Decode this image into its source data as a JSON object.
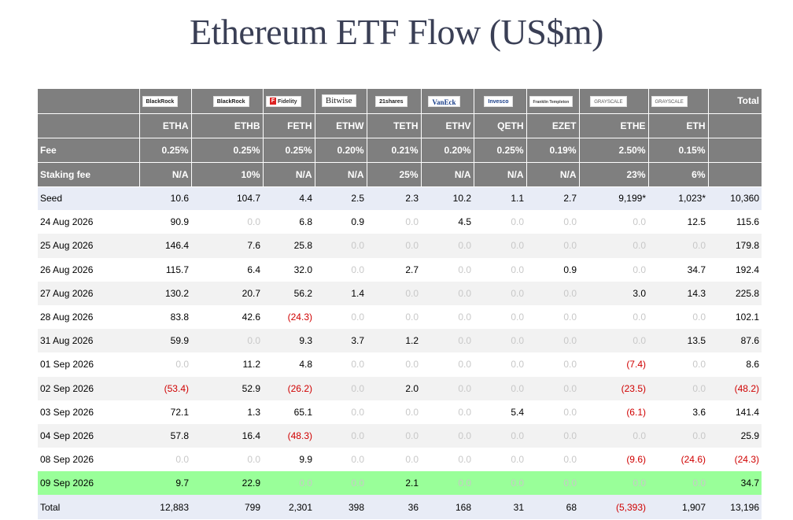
{
  "title": "Ethereum ETF Flow (US$m)",
  "issuers": [
    "BlackRock",
    "BlackRock",
    "Fidelity",
    "Bitwise",
    "21shares",
    "VanEck",
    "Invesco",
    "Franklin Templeton",
    "GRAYSCALE",
    "GRAYSCALE"
  ],
  "total_label": "Total",
  "tickers": [
    "ETHA",
    "ETHB",
    "FETH",
    "ETHW",
    "TETH",
    "ETHV",
    "QETH",
    "EZET",
    "ETHE",
    "ETH"
  ],
  "fee_label": "Fee",
  "fees": [
    "0.25%",
    "0.25%",
    "0.25%",
    "0.20%",
    "0.21%",
    "0.20%",
    "0.25%",
    "0.19%",
    "2.50%",
    "0.15%"
  ],
  "staking_label": "Staking fee",
  "staking_fees": [
    "N/A",
    "10%",
    "N/A",
    "N/A",
    "25%",
    "N/A",
    "N/A",
    "N/A",
    "23%",
    "6%"
  ],
  "rows": [
    {
      "label": "Seed",
      "style": "seed",
      "values": [
        "10.6",
        "104.7",
        "4.4",
        "2.5",
        "2.3",
        "10.2",
        "1.1",
        "2.7",
        "9,199*",
        "1,023*",
        "10,360"
      ]
    },
    {
      "label": "24 Aug 2026",
      "style": "odd",
      "values": [
        "90.9",
        "0.0",
        "6.8",
        "0.9",
        "0.0",
        "4.5",
        "0.0",
        "0.0",
        "0.0",
        "12.5",
        "115.6"
      ]
    },
    {
      "label": "25 Aug 2026",
      "style": "even",
      "values": [
        "146.4",
        "7.6",
        "25.8",
        "0.0",
        "0.0",
        "0.0",
        "0.0",
        "0.0",
        "0.0",
        "0.0",
        "179.8"
      ]
    },
    {
      "label": "26 Aug 2026",
      "style": "odd",
      "values": [
        "115.7",
        "6.4",
        "32.0",
        "0.0",
        "2.7",
        "0.0",
        "0.0",
        "0.9",
        "0.0",
        "34.7",
        "192.4"
      ]
    },
    {
      "label": "27 Aug 2026",
      "style": "even",
      "values": [
        "130.2",
        "20.7",
        "56.2",
        "1.4",
        "0.0",
        "0.0",
        "0.0",
        "0.0",
        "3.0",
        "14.3",
        "225.8"
      ]
    },
    {
      "label": "28 Aug 2026",
      "style": "odd",
      "values": [
        "83.8",
        "42.6",
        "(24.3)",
        "0.0",
        "0.0",
        "0.0",
        "0.0",
        "0.0",
        "0.0",
        "0.0",
        "102.1"
      ]
    },
    {
      "label": "31 Aug 2026",
      "style": "even",
      "values": [
        "59.9",
        "0.0",
        "9.3",
        "3.7",
        "1.2",
        "0.0",
        "0.0",
        "0.0",
        "0.0",
        "13.5",
        "87.6"
      ]
    },
    {
      "label": "01 Sep 2026",
      "style": "odd",
      "values": [
        "0.0",
        "11.2",
        "4.8",
        "0.0",
        "0.0",
        "0.0",
        "0.0",
        "0.0",
        "(7.4)",
        "0.0",
        "8.6"
      ]
    },
    {
      "label": "02 Sep 2026",
      "style": "even",
      "values": [
        "(53.4)",
        "52.9",
        "(26.2)",
        "0.0",
        "2.0",
        "0.0",
        "0.0",
        "0.0",
        "(23.5)",
        "0.0",
        "(48.2)"
      ]
    },
    {
      "label": "03 Sep 2026",
      "style": "odd",
      "values": [
        "72.1",
        "1.3",
        "65.1",
        "0.0",
        "0.0",
        "0.0",
        "5.4",
        "0.0",
        "(6.1)",
        "3.6",
        "141.4"
      ]
    },
    {
      "label": "04 Sep 2026",
      "style": "even",
      "values": [
        "57.8",
        "16.4",
        "(48.3)",
        "0.0",
        "0.0",
        "0.0",
        "0.0",
        "0.0",
        "0.0",
        "0.0",
        "25.9"
      ]
    },
    {
      "label": "08 Sep 2026",
      "style": "odd",
      "values": [
        "0.0",
        "0.0",
        "9.9",
        "0.0",
        "0.0",
        "0.0",
        "0.0",
        "0.0",
        "(9.6)",
        "(24.6)",
        "(24.3)"
      ]
    },
    {
      "label": "09 Sep 2026",
      "style": "green",
      "values": [
        "9.7",
        "22.9",
        "0.0",
        "0.0",
        "2.1",
        "0.0",
        "0.0",
        "0.0",
        "0.0",
        "0.0",
        "34.7"
      ]
    },
    {
      "label": "Total",
      "style": "total",
      "values": [
        "12,883",
        "799",
        "2,301",
        "398",
        "36",
        "168",
        "31",
        "68",
        "(5,393)",
        "1,907",
        "13,196"
      ]
    }
  ],
  "colors": {
    "header_bg": "#7f7f7f",
    "negative": "#d00000",
    "zero": "#c8c8c8",
    "highlight": "#99ff99",
    "seed_bg": "#e8ecf6",
    "title": "#3a3f55"
  }
}
